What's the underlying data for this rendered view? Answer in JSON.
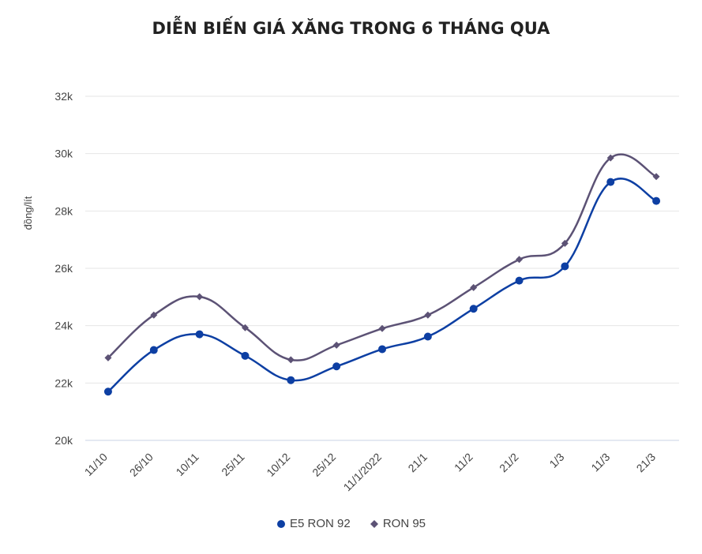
{
  "chart_data": {
    "type": "line",
    "title": "DIỄN BIẾN GIÁ XĂNG TRONG 6 THÁNG QUA",
    "ylabel": "đồng/lít",
    "xlabel": "",
    "categories": [
      "11/10",
      "26/10",
      "10/11",
      "25/11",
      "10/12",
      "25/12",
      "11/1/2022",
      "21/1",
      "11/2",
      "21/2",
      "1/3",
      "11/3",
      "21/3"
    ],
    "ylim": [
      20000,
      32000
    ],
    "yticks": [
      20000,
      22000,
      24000,
      26000,
      28000,
      30000,
      32000
    ],
    "ytick_labels": [
      "20k",
      "22k",
      "24k",
      "26k",
      "28k",
      "30k",
      "32k"
    ],
    "grid": true,
    "legend_position": "bottom",
    "series": [
      {
        "name": "E5 RON 92",
        "color": "#0d3fa3",
        "marker": "circle",
        "values": [
          21700,
          23150,
          23700,
          22950,
          22100,
          22580,
          23180,
          23620,
          24590,
          25570,
          26070,
          29010,
          28350
        ]
      },
      {
        "name": "RON 95",
        "color": "#5c5275",
        "marker": "diamond",
        "values": [
          22880,
          24370,
          25010,
          23930,
          22810,
          23320,
          23900,
          24370,
          25330,
          26310,
          26870,
          29850,
          29200
        ]
      }
    ]
  }
}
